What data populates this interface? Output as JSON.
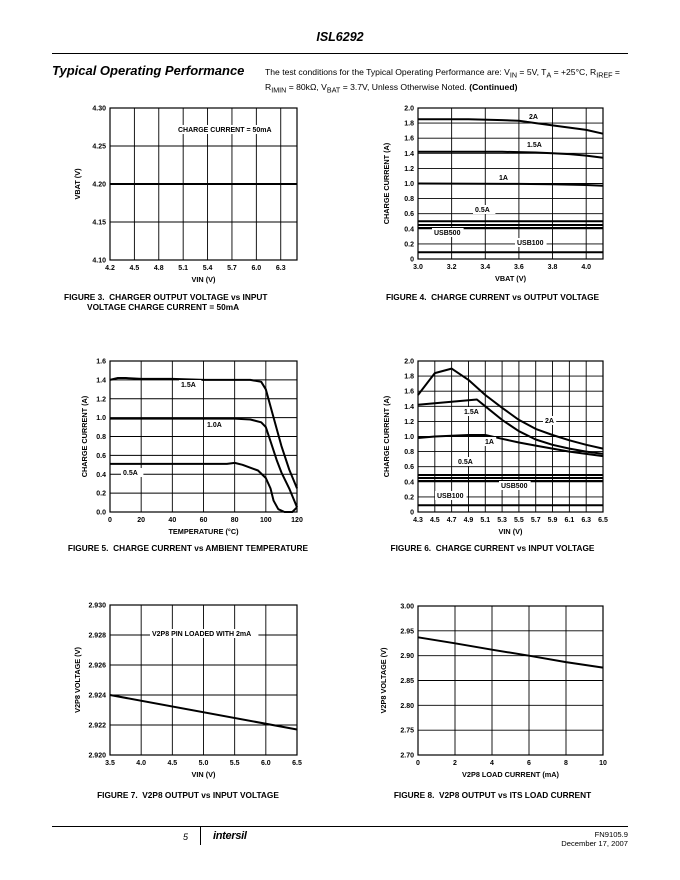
{
  "header": {
    "title": "ISL6292"
  },
  "section": {
    "title": "Typical Operating Performance",
    "conditions_html": "The test conditions for the Typical Operating Performance are: V<sub>IN</sub> = 5V, T<sub>A</sub> = +25°C, R<sub>IREF</sub> = R<sub>IMIN</sub> = 80kΩ, V<sub>BAT</sub> = 3.7V, Unless Otherwise Noted. <b>(Continued)</b>"
  },
  "figures": [
    {
      "caption": "FIGURE 3.  CHARGER OUTPUT VOLTAGE vs INPUT\n          VOLTAGE CHARGE CURRENT = 50mA"
    },
    {
      "caption": "FIGURE 4.  CHARGE CURRENT vs OUTPUT VOLTAGE"
    },
    {
      "caption": "FIGURE 5.  CHARGE CURRENT vs AMBIENT TEMPERATURE"
    },
    {
      "caption": "FIGURE 6.  CHARGE CURRENT vs INPUT VOLTAGE"
    },
    {
      "caption": "FIGURE 7.  V2P8 OUTPUT vs INPUT VOLTAGE"
    },
    {
      "caption": "FIGURE 8.  V2P8 OUTPUT vs ITS LOAD CURRENT"
    }
  ],
  "chart_data": [
    {
      "type": "line",
      "xlabel": "VIN (V)",
      "ylabel": "VBAT (V)",
      "xlim": [
        4.2,
        6.5
      ],
      "ylim": [
        4.1,
        4.3
      ],
      "x_ticks": [
        "4.2",
        "4.5",
        "4.8",
        "5.1",
        "5.4",
        "5.7",
        "6.0",
        "6.3"
      ],
      "y_ticks": [
        "4.10",
        "4.15",
        "4.20",
        "4.25",
        "4.30"
      ],
      "grid": true,
      "annotations": [
        "CHARGE CURRENT = 50mA"
      ],
      "series": [
        {
          "x": [
            4.2,
            6.5
          ],
          "y": [
            4.2,
            4.2
          ]
        }
      ]
    },
    {
      "type": "line",
      "xlabel": "VBAT (V)",
      "ylabel": "CHARGE CURRENT (A)",
      "xlim": [
        3.0,
        4.1
      ],
      "ylim": [
        0,
        2.0
      ],
      "x_ticks": [
        "3.0",
        "3.2",
        "3.4",
        "3.6",
        "3.8",
        "4.0"
      ],
      "y_ticks": [
        "0",
        "0.2",
        "0.4",
        "0.6",
        "0.8",
        "1.0",
        "1.2",
        "1.4",
        "1.6",
        "1.8",
        "2.0"
      ],
      "grid": true,
      "series": [
        {
          "name": "2A",
          "x": [
            3.0,
            3.3,
            3.5,
            3.6,
            3.7,
            3.8,
            3.9,
            4.0,
            4.1
          ],
          "y": [
            1.85,
            1.85,
            1.84,
            1.83,
            1.8,
            1.77,
            1.74,
            1.71,
            1.66
          ]
        },
        {
          "name": "1.5A",
          "x": [
            3.0,
            3.5,
            3.7,
            3.8,
            3.9,
            4.0,
            4.1
          ],
          "y": [
            1.42,
            1.42,
            1.41,
            1.4,
            1.39,
            1.37,
            1.34
          ]
        },
        {
          "name": "1A",
          "x": [
            3.0,
            3.6,
            3.8,
            4.0,
            4.1
          ],
          "y": [
            1.0,
            0.995,
            0.99,
            0.98,
            0.97
          ]
        },
        {
          "name": "0.5A",
          "x": [
            3.0,
            4.1
          ],
          "y": [
            0.5,
            0.5
          ]
        },
        {
          "name": "",
          "x": [
            3.0,
            4.1
          ],
          "y": [
            0.45,
            0.45
          ]
        },
        {
          "name": "USB500",
          "x": [
            3.0,
            4.1
          ],
          "y": [
            0.41,
            0.41
          ]
        },
        {
          "name": "USB100",
          "x": [
            3.0,
            4.1
          ],
          "y": [
            0.09,
            0.09
          ]
        }
      ]
    },
    {
      "type": "line",
      "xlabel": "TEMPERATURE (°C)",
      "ylabel": "CHARGE CURRENT (A)",
      "xlim": [
        0,
        120
      ],
      "ylim": [
        0,
        1.6
      ],
      "x_ticks": [
        "0",
        "20",
        "40",
        "60",
        "80",
        "100",
        "120"
      ],
      "y_ticks": [
        "0.0",
        "0.2",
        "0.4",
        "0.6",
        "0.8",
        "1.0",
        "1.2",
        "1.4",
        "1.6"
      ],
      "grid": true,
      "series": [
        {
          "name": "1.5A",
          "x": [
            0,
            5,
            10,
            20,
            40,
            60,
            80,
            90,
            97,
            100,
            105,
            110,
            115,
            120
          ],
          "y": [
            1.4,
            1.42,
            1.42,
            1.41,
            1.41,
            1.4,
            1.4,
            1.4,
            1.38,
            1.3,
            1.0,
            0.7,
            0.45,
            0.25
          ]
        },
        {
          "name": "1.0A",
          "x": [
            0,
            20,
            40,
            60,
            80,
            90,
            97,
            100,
            103,
            107,
            110,
            115,
            120
          ],
          "y": [
            0.99,
            0.99,
            0.99,
            0.99,
            0.99,
            0.98,
            0.95,
            0.9,
            0.75,
            0.55,
            0.42,
            0.25,
            0.05
          ]
        },
        {
          "name": "0.5A",
          "x": [
            0,
            20,
            40,
            60,
            75,
            80,
            85,
            95,
            100,
            103,
            105,
            108,
            112,
            117,
            120
          ],
          "y": [
            0.51,
            0.51,
            0.51,
            0.51,
            0.51,
            0.52,
            0.5,
            0.44,
            0.36,
            0.25,
            0.12,
            0.03,
            0.0,
            0.0,
            0.05
          ]
        }
      ]
    },
    {
      "type": "line",
      "xlabel": "VIN (V)",
      "ylabel": "CHARGE CURRENT (A)",
      "xlim": [
        4.3,
        6.5
      ],
      "ylim": [
        0,
        2.0
      ],
      "x_ticks": [
        "4.3",
        "4.5",
        "4.7",
        "4.9",
        "5.1",
        "5.3",
        "5.5",
        "5.7",
        "5.9",
        "6.1",
        "6.3",
        "6.5"
      ],
      "y_ticks": [
        "0",
        "0.2",
        "0.4",
        "0.6",
        "0.8",
        "1.0",
        "1.2",
        "1.4",
        "1.6",
        "1.8",
        "2.0"
      ],
      "grid": true,
      "series": [
        {
          "name": "2A",
          "x": [
            4.3,
            4.5,
            4.7,
            4.9,
            5.1,
            5.3,
            5.5,
            5.7,
            5.9,
            6.1,
            6.3,
            6.5
          ],
          "y": [
            1.55,
            1.84,
            1.9,
            1.75,
            1.55,
            1.38,
            1.22,
            1.1,
            1.02,
            0.95,
            0.89,
            0.84
          ]
        },
        {
          "name": "1.5A",
          "x": [
            4.3,
            4.5,
            4.7,
            4.9,
            5.0,
            5.1,
            5.3,
            5.5,
            5.7,
            5.9,
            6.1,
            6.3,
            6.5
          ],
          "y": [
            1.42,
            1.44,
            1.46,
            1.48,
            1.49,
            1.4,
            1.22,
            1.07,
            0.96,
            0.89,
            0.84,
            0.8,
            0.77
          ]
        },
        {
          "name": "1A",
          "x": [
            4.3,
            4.5,
            4.7,
            4.9,
            5.1,
            5.3,
            5.5,
            5.7,
            5.9,
            6.1,
            6.3,
            6.5
          ],
          "y": [
            0.98,
            1.0,
            1.01,
            1.02,
            1.02,
            0.97,
            0.92,
            0.88,
            0.84,
            0.8,
            0.77,
            0.74
          ]
        },
        {
          "name": "0.5A",
          "x": [
            4.3,
            6.5
          ],
          "y": [
            0.49,
            0.49
          ]
        },
        {
          "name": "",
          "x": [
            4.3,
            6.5
          ],
          "y": [
            0.45,
            0.45
          ]
        },
        {
          "name": "USB500",
          "x": [
            4.3,
            6.5
          ],
          "y": [
            0.41,
            0.41
          ]
        },
        {
          "name": "USB100",
          "x": [
            4.3,
            6.5
          ],
          "y": [
            0.09,
            0.09
          ]
        }
      ]
    },
    {
      "type": "line",
      "xlabel": "VIN (V)",
      "ylabel": "V2P8 VOLTAGE (V)",
      "xlim": [
        3.5,
        6.5
      ],
      "ylim": [
        2.92,
        2.93
      ],
      "x_ticks": [
        "3.5",
        "4.0",
        "4.5",
        "5.0",
        "5.5",
        "6.0",
        "6.5"
      ],
      "y_ticks": [
        "2.920",
        "2.922",
        "2.924",
        "2.926",
        "2.928",
        "2.930"
      ],
      "grid": true,
      "annotations": [
        "V2P8 PIN LOADED WITH 2mA"
      ],
      "series": [
        {
          "x": [
            3.5,
            6.5
          ],
          "y": [
            2.924,
            2.9217
          ]
        }
      ]
    },
    {
      "type": "line",
      "xlabel": "V2P8 LOAD CURRENT (mA)",
      "ylabel": "V2P8 VOLTAGE (V)",
      "xlim": [
        0,
        10
      ],
      "ylim": [
        2.7,
        3.0
      ],
      "x_ticks": [
        "0",
        "2",
        "4",
        "6",
        "8",
        "10"
      ],
      "y_ticks": [
        "2.70",
        "2.75",
        "2.80",
        "2.85",
        "2.90",
        "2.95",
        "3.00"
      ],
      "grid": true,
      "series": [
        {
          "x": [
            0,
            2,
            4,
            6,
            8,
            10
          ],
          "y": [
            2.937,
            2.925,
            2.912,
            2.9,
            2.887,
            2.876
          ]
        }
      ]
    }
  ],
  "footer": {
    "page_number": "5",
    "logo_text": "intersil",
    "doc_number": "FN9105.9",
    "date": "December 17, 2007"
  }
}
